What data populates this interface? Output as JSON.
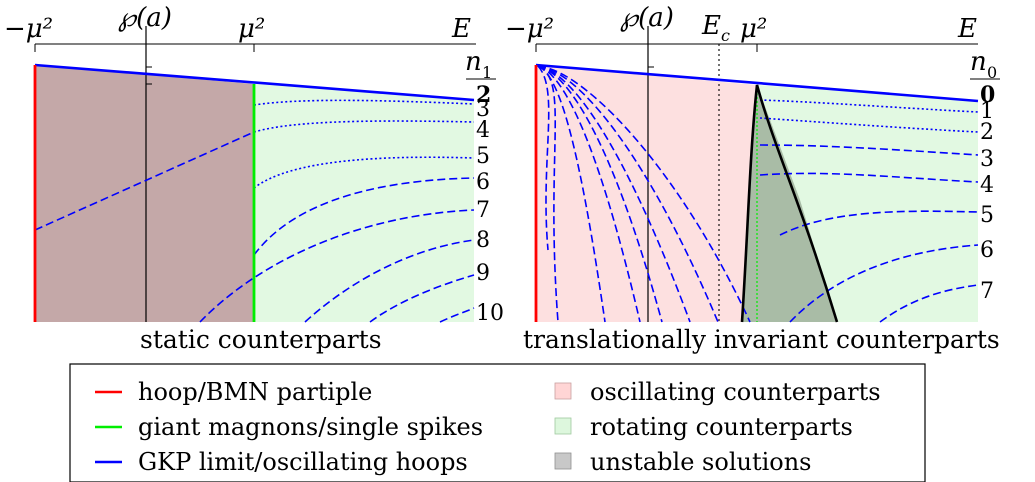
{
  "left_panel": {
    "caption": "static counterparts",
    "axis": {
      "neg_mu2": "−μ²",
      "wp_a": "℘(a)",
      "mu2": "μ²",
      "E": "E",
      "n_label": "n",
      "n_sub": "1"
    },
    "n_labels": [
      "2",
      "3",
      "4",
      "5",
      "6",
      "7",
      "8",
      "9",
      "10"
    ]
  },
  "right_panel": {
    "caption": "translationally invariant counterparts",
    "axis": {
      "neg_mu2": "−μ²",
      "wp_a": "℘(a)",
      "Ec": "E",
      "Ec_sub": "c",
      "mu2": "μ²",
      "E": "E",
      "n_label": "n",
      "n_sub": "0"
    },
    "n_labels": [
      "0",
      "1",
      "2",
      "3",
      "4",
      "5",
      "6",
      "7"
    ]
  },
  "legend": {
    "lines": [
      {
        "label": "hoop/BMN partiple",
        "color": "#ff0000"
      },
      {
        "label": "giant magnons/single spikes",
        "color": "#00ee00"
      },
      {
        "label": "GKP limit/oscillating hoops",
        "color": "#0000ff"
      }
    ],
    "patches": [
      {
        "label": "oscillating counterparts",
        "color": "#ffd5d5"
      },
      {
        "label": "rotating counterparts",
        "color": "#ddf7dd"
      },
      {
        "label": "unstable solutions",
        "color": "#c8c8c8"
      }
    ]
  },
  "colors": {
    "static_region": "#c4a8a8",
    "oscillating": "#fde0e0",
    "rotating": "#e2f9e2",
    "unstable": "#a9bca6",
    "curve": "#0000ff",
    "red_line": "#ff0000",
    "green_line": "#00ee00"
  }
}
